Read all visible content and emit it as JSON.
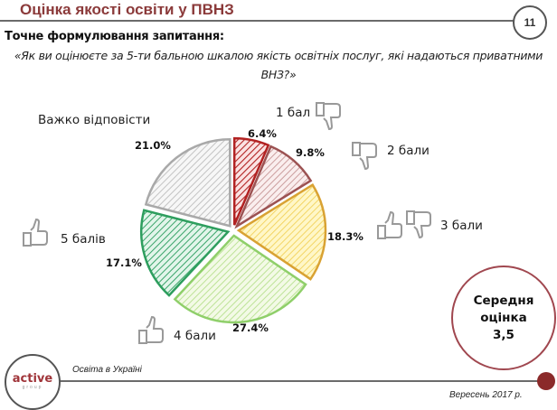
{
  "header": {
    "title": "Оцінка якості освіти у ПВНЗ",
    "page_number": "11"
  },
  "question": {
    "label": "Точне формулювання запитання:",
    "text": "«Як ви оцінюєте за 5-ти бальною шкалою якість освітніх послуг, які надаються приватними ВНЗ?»"
  },
  "average": {
    "line1": "Середня",
    "line2": "оцінка",
    "value": "3,5"
  },
  "footer": {
    "logo_text": "active",
    "logo_sub": "group",
    "left_text": "Освіта в Україні",
    "right_text": "Вересень 2017 р."
  },
  "icons": {
    "1": "thumbs-down",
    "2": "thumbs-down",
    "3": "thumbs-up-and-down",
    "4": "thumbs-up",
    "5": "thumbs-up"
  },
  "chart_data": {
    "type": "pie",
    "title": "",
    "exploded": true,
    "start_angle": "12 o'clock, clockwise",
    "categories": [
      "1 бал",
      "2 бали",
      "3 бали",
      "4 бали",
      "5 балів",
      "Важко відповісти"
    ],
    "values": [
      6.4,
      9.8,
      18.3,
      27.4,
      17.1,
      21.0
    ],
    "labels": [
      "6.4%",
      "9.8%",
      "18.3%",
      "27.4%",
      "17.1%",
      "21.0%"
    ],
    "colors": [
      "#b22222",
      "#9c5252",
      "#d9a233",
      "#8fcf6a",
      "#2e9e5e",
      "#a9a9a9"
    ],
    "fills": [
      "#f5c6c6",
      "#f3dede",
      "#fff2a8",
      "#e6f5c9",
      "#c9ecd5",
      "#ececec"
    ],
    "fill_pattern": "diagonal-hatch",
    "legend": "labels placed beside slices with thumb icons"
  }
}
